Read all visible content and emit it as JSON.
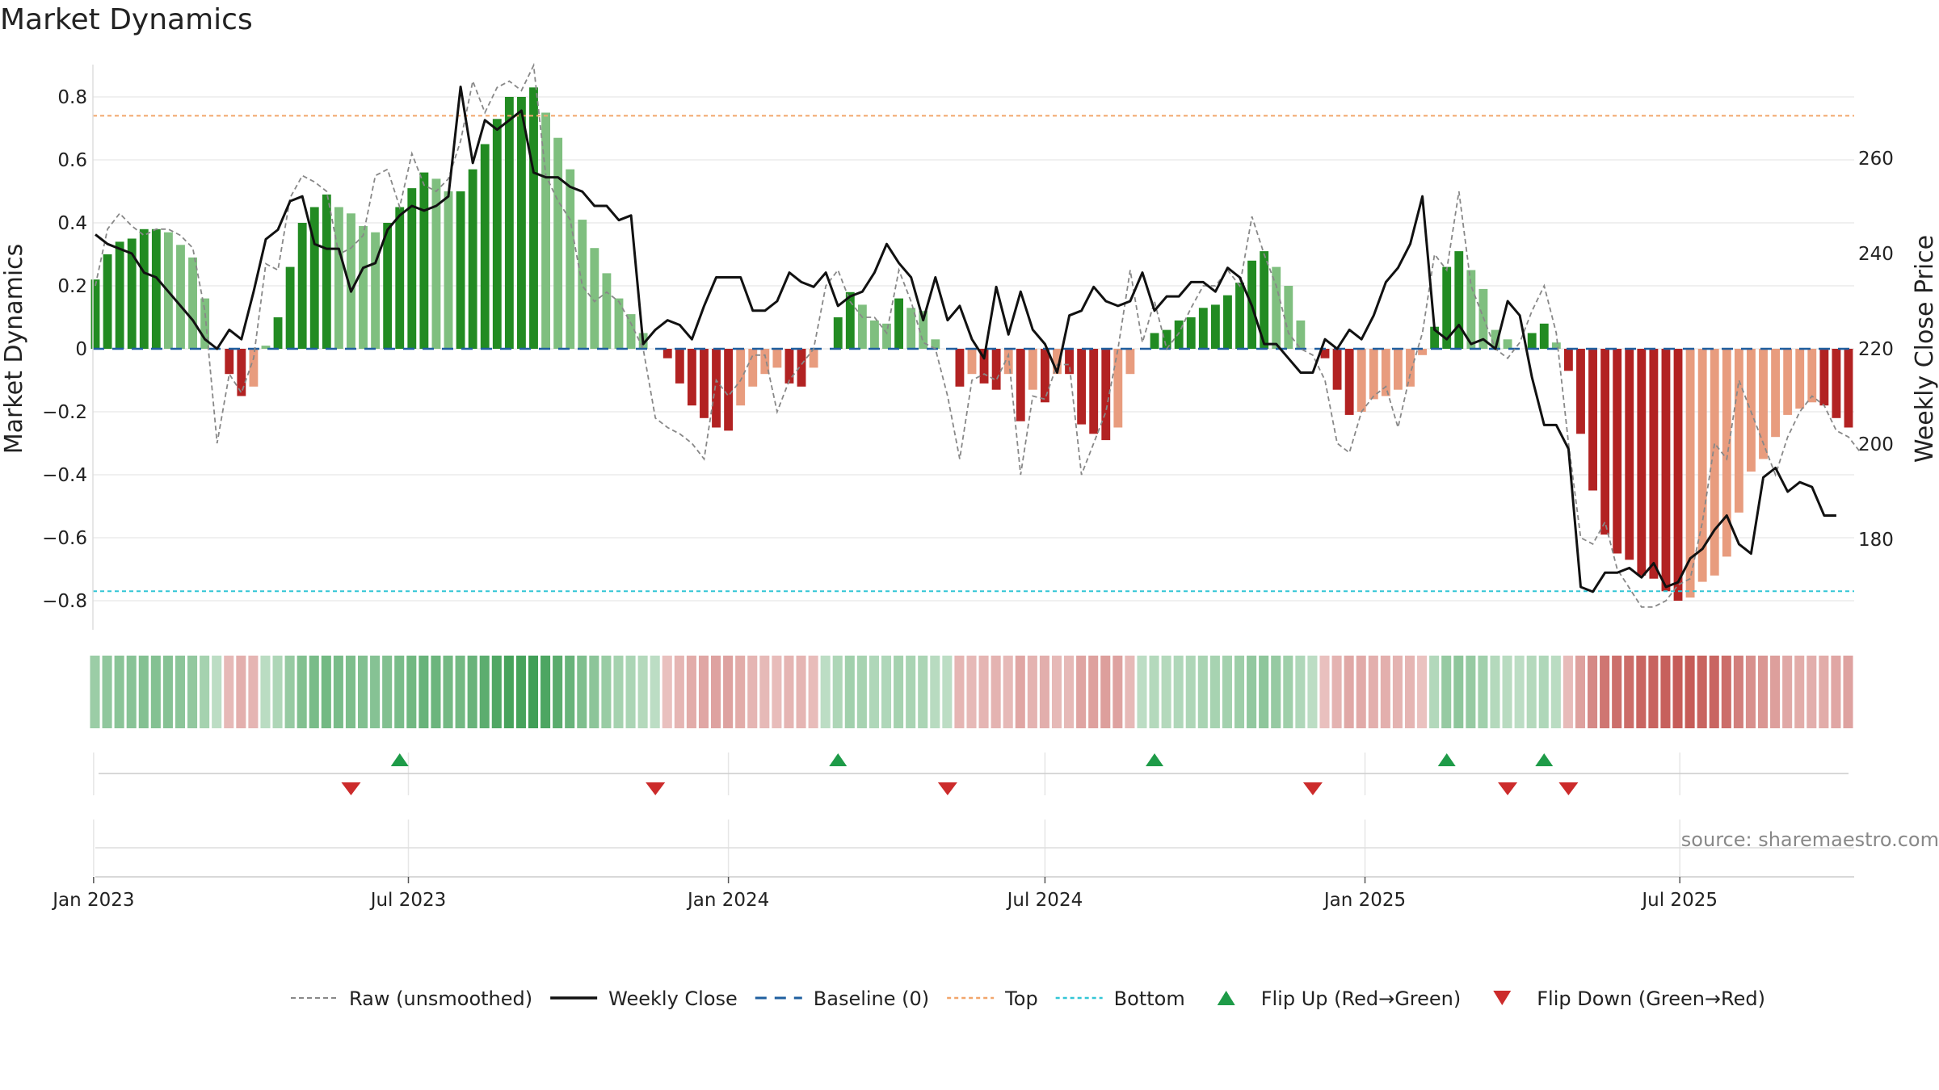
{
  "title": "Market Dynamics",
  "source": "source: sharemaestro.com",
  "colors": {
    "green_strong": "#228b22",
    "green_light": "#7fbf7f",
    "red_strong": "#b22222",
    "red_light": "#e89c7e",
    "top_line": "#f2a66b",
    "bottom_line": "#33c6d6",
    "baseline": "#1f5f9f",
    "close": "#111111",
    "raw": "#888888",
    "flip_up": "#1e9b48",
    "flip_down": "#cc2b2b"
  },
  "chart_data": {
    "type": "bar+line",
    "start_date": "2023-01-02",
    "week_labels_x": [
      "Jan 2023",
      "Jul 2023",
      "Jan 2024",
      "Jul 2024",
      "Jan 2025",
      "Jul 2025"
    ],
    "xtick_dates": [
      "2023-01-01",
      "2023-07-01",
      "2024-01-01",
      "2024-07-01",
      "2025-01-01",
      "2025-07-01"
    ],
    "left_axis": {
      "label": "Market Dynamics",
      "ticks": [
        "0.8",
        "0.6",
        "0.4",
        "0.2",
        "0",
        "−0.2",
        "−0.4",
        "−0.6",
        "−0.8"
      ],
      "tick_values": [
        0.8,
        0.6,
        0.4,
        0.2,
        0,
        -0.2,
        -0.4,
        -0.6,
        -0.8
      ],
      "range": [
        -0.9,
        0.9
      ]
    },
    "right_axis": {
      "label": "Weekly Close Price",
      "ticks": [
        "260",
        "240",
        "220",
        "200",
        "180"
      ],
      "tick_values": [
        260,
        240,
        220,
        200,
        180
      ],
      "range": [
        165,
        277
      ]
    },
    "top_level": 0.74,
    "bottom_level": -0.77,
    "bars": [
      0.22,
      0.3,
      0.34,
      0.35,
      0.38,
      0.38,
      0.37,
      0.33,
      0.29,
      0.16,
      0.0,
      -0.08,
      -0.15,
      -0.12,
      0.01,
      0.1,
      0.26,
      0.4,
      0.45,
      0.49,
      0.45,
      0.43,
      0.39,
      0.37,
      0.4,
      0.45,
      0.51,
      0.56,
      0.54,
      0.5,
      0.5,
      0.57,
      0.65,
      0.73,
      0.8,
      0.8,
      0.83,
      0.75,
      0.67,
      0.57,
      0.41,
      0.32,
      0.24,
      0.16,
      0.11,
      0.05,
      0.0,
      -0.03,
      -0.11,
      -0.18,
      -0.22,
      -0.25,
      -0.26,
      -0.18,
      -0.12,
      -0.08,
      -0.06,
      -0.11,
      -0.12,
      -0.06,
      0.0,
      0.1,
      0.18,
      0.14,
      0.09,
      0.08,
      0.16,
      0.13,
      0.12,
      0.03,
      0.0,
      -0.12,
      -0.08,
      -0.11,
      -0.13,
      -0.08,
      -0.23,
      -0.13,
      -0.17,
      -0.08,
      -0.08,
      -0.24,
      -0.27,
      -0.29,
      -0.25,
      -0.08,
      0.0,
      0.05,
      0.06,
      0.09,
      0.1,
      0.13,
      0.14,
      0.17,
      0.21,
      0.28,
      0.31,
      0.26,
      0.2,
      0.09,
      0.0,
      -0.03,
      -0.13,
      -0.21,
      -0.2,
      -0.16,
      -0.15,
      -0.13,
      -0.12,
      -0.02,
      0.07,
      0.26,
      0.31,
      0.25,
      0.19,
      0.06,
      0.03,
      0.0,
      0.05,
      0.08,
      0.02,
      -0.07,
      -0.27,
      -0.45,
      -0.59,
      -0.65,
      -0.67,
      -0.72,
      -0.73,
      -0.77,
      -0.8,
      -0.79,
      -0.74,
      -0.72,
      -0.66,
      -0.52,
      -0.39,
      -0.35,
      -0.28,
      -0.21,
      -0.19,
      -0.17,
      -0.18,
      -0.22,
      -0.25
    ],
    "raw": [
      0.2,
      0.38,
      0.43,
      0.39,
      0.36,
      0.38,
      0.38,
      0.36,
      0.32,
      0.12,
      -0.3,
      -0.08,
      -0.14,
      -0.03,
      0.27,
      0.25,
      0.48,
      0.55,
      0.53,
      0.5,
      0.3,
      0.32,
      0.36,
      0.55,
      0.57,
      0.45,
      0.62,
      0.52,
      0.5,
      0.54,
      0.66,
      0.85,
      0.75,
      0.83,
      0.85,
      0.82,
      0.9,
      0.55,
      0.47,
      0.41,
      0.2,
      0.15,
      0.18,
      0.15,
      0.08,
      0.0,
      -0.22,
      -0.25,
      -0.27,
      -0.3,
      -0.35,
      -0.1,
      -0.15,
      -0.1,
      -0.02,
      -0.02,
      -0.2,
      -0.1,
      -0.05,
      0.0,
      0.2,
      0.25,
      0.15,
      0.1,
      0.1,
      0.05,
      0.25,
      0.15,
      0.02,
      0.0,
      -0.15,
      -0.35,
      -0.1,
      -0.08,
      -0.1,
      -0.02,
      -0.4,
      -0.15,
      -0.16,
      -0.05,
      -0.05,
      -0.4,
      -0.3,
      -0.2,
      0.0,
      0.25,
      0.02,
      0.15,
      0.0,
      0.05,
      0.13,
      0.2,
      0.2,
      0.25,
      0.2,
      0.42,
      0.3,
      0.2,
      0.05,
      0.0,
      -0.02,
      -0.1,
      -0.3,
      -0.33,
      -0.2,
      -0.15,
      -0.12,
      -0.25,
      -0.08,
      0.05,
      0.3,
      0.25,
      0.5,
      0.2,
      0.1,
      0.0,
      -0.03,
      0.02,
      0.12,
      0.2,
      0.05,
      -0.3,
      -0.6,
      -0.62,
      -0.55,
      -0.7,
      -0.76,
      -0.82,
      -0.82,
      -0.8,
      -0.75,
      -0.73,
      -0.55,
      -0.3,
      -0.35,
      -0.1,
      -0.2,
      -0.3,
      -0.4,
      -0.28,
      -0.2,
      -0.15,
      -0.18,
      -0.26,
      -0.28,
      -0.33
    ],
    "weekly_close": [
      244,
      242,
      241,
      240,
      236,
      235,
      232,
      229,
      226,
      222,
      220,
      224,
      222,
      232,
      243,
      245,
      251,
      252,
      242,
      241,
      241,
      232,
      237,
      238,
      245,
      248,
      250,
      249,
      250,
      252,
      275,
      259,
      268,
      266,
      268,
      270,
      257,
      256,
      256,
      254,
      253,
      250,
      250,
      247,
      248,
      221,
      224,
      226,
      225,
      222,
      229,
      235,
      235,
      235,
      228,
      228,
      230,
      236,
      234,
      233,
      236,
      229,
      231,
      232,
      236,
      242,
      238,
      235,
      226,
      235,
      226,
      229,
      222,
      218,
      233,
      223,
      232,
      224,
      221,
      215,
      227,
      228,
      233,
      230,
      229,
      230,
      236,
      228,
      231,
      231,
      234,
      234,
      232,
      237,
      235,
      229,
      221,
      221,
      218,
      215,
      215,
      222,
      220,
      224,
      222,
      227,
      234,
      237,
      242,
      252,
      224,
      222,
      225,
      221,
      222,
      220,
      230,
      227,
      214,
      204,
      204,
      199,
      170,
      169,
      173,
      173,
      174,
      172,
      175,
      170,
      171,
      176,
      178,
      182,
      185,
      179,
      177,
      193,
      195,
      190,
      192,
      191,
      185,
      185
    ],
    "flips": [
      {
        "week": 21,
        "dir": "down"
      },
      {
        "week": 25,
        "dir": "up"
      },
      {
        "week": 46,
        "dir": "down"
      },
      {
        "week": 61,
        "dir": "up"
      },
      {
        "week": 70,
        "dir": "down"
      },
      {
        "week": 87,
        "dir": "up"
      },
      {
        "week": 100,
        "dir": "down"
      },
      {
        "week": 111,
        "dir": "up"
      },
      {
        "week": 116,
        "dir": "down"
      },
      {
        "week": 119,
        "dir": "up"
      },
      {
        "week": 121,
        "dir": "down"
      }
    ]
  },
  "legend": [
    {
      "key": "raw",
      "label": "Raw (unsmoothed)"
    },
    {
      "key": "close",
      "label": "Weekly Close"
    },
    {
      "key": "baseline",
      "label": "Baseline (0)"
    },
    {
      "key": "top",
      "label": "Top"
    },
    {
      "key": "bottom",
      "label": "Bottom"
    },
    {
      "key": "flip_up",
      "label": "Flip Up (Red→Green)"
    },
    {
      "key": "flip_down",
      "label": "Flip Down (Green→Red)"
    }
  ]
}
